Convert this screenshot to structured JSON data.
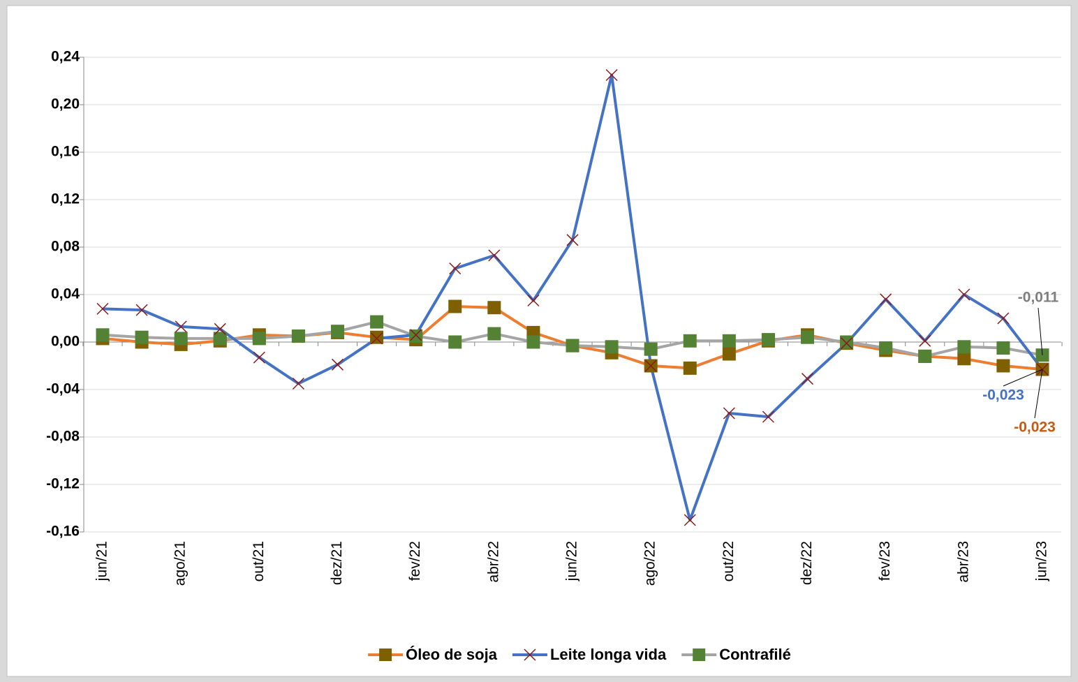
{
  "chart_data": {
    "type": "line",
    "categories": [
      "jun/21",
      null,
      "ago/21",
      null,
      "out/21",
      null,
      "dez/21",
      null,
      "fev/22",
      null,
      "abr/22",
      null,
      "jun/22",
      null,
      "ago/22",
      null,
      "out/22",
      null,
      "dez/22",
      null,
      "fev/23",
      null,
      "abr/23",
      null,
      "jun/23"
    ],
    "series": [
      {
        "name": "Óleo de soja",
        "color": "#ed7d31",
        "marker": "square",
        "marker_color": "#7f6000",
        "values": [
          0.003,
          0.0,
          -0.002,
          0.001,
          0.006,
          0.005,
          0.008,
          0.004,
          0.002,
          0.03,
          0.029,
          0.008,
          -0.003,
          -0.009,
          -0.02,
          -0.022,
          -0.01,
          0.001,
          0.006,
          -0.001,
          -0.007,
          -0.012,
          -0.014,
          -0.02,
          -0.023
        ],
        "value_labels": [
          null,
          null,
          null,
          null,
          null,
          null,
          null,
          null,
          null,
          null,
          null,
          null,
          null,
          null,
          null,
          null,
          null,
          null,
          null,
          null,
          null,
          null,
          null,
          null,
          "-0,023"
        ]
      },
      {
        "name": "Leite longa vida",
        "color": "#4472c4",
        "marker": "x",
        "marker_color": "#8b1a1a",
        "values": [
          0.028,
          0.027,
          0.013,
          0.011,
          -0.013,
          -0.035,
          -0.019,
          0.003,
          0.006,
          0.062,
          0.073,
          0.035,
          0.086,
          0.225,
          -0.02,
          -0.15,
          -0.06,
          -0.063,
          -0.031,
          -0.001,
          0.036,
          0.001,
          0.04,
          0.02,
          -0.023
        ],
        "value_labels": [
          null,
          null,
          null,
          null,
          null,
          null,
          null,
          null,
          null,
          null,
          null,
          null,
          null,
          null,
          null,
          null,
          null,
          null,
          null,
          null,
          null,
          null,
          null,
          null,
          "-0,023"
        ]
      },
      {
        "name": "Contrafilé",
        "color": "#a5a5a5",
        "marker": "square",
        "marker_color": "#548235",
        "values": [
          0.006,
          0.004,
          0.003,
          0.003,
          0.003,
          0.005,
          0.009,
          0.017,
          0.005,
          0.0,
          0.007,
          0.0,
          -0.003,
          -0.004,
          -0.006,
          0.001,
          0.001,
          0.002,
          0.004,
          0.0,
          -0.005,
          -0.012,
          -0.004,
          -0.005,
          -0.011
        ],
        "value_labels": [
          null,
          null,
          null,
          null,
          null,
          null,
          null,
          null,
          null,
          null,
          null,
          null,
          null,
          null,
          null,
          null,
          null,
          null,
          null,
          null,
          null,
          null,
          null,
          null,
          "-0,011"
        ]
      }
    ],
    "ylim": [
      -0.16,
      0.24
    ],
    "yticks": [
      {
        "value": -0.16,
        "label": "-0,16"
      },
      {
        "value": -0.12,
        "label": "-0,12"
      },
      {
        "value": -0.08,
        "label": "-0,08"
      },
      {
        "value": -0.04,
        "label": "-0,04"
      },
      {
        "value": 0,
        "label": "0,00"
      },
      {
        "value": 0.04,
        "label": "0,04"
      },
      {
        "value": 0.08,
        "label": "0,08"
      },
      {
        "value": 0.12,
        "label": "0,12"
      },
      {
        "value": 0.16,
        "label": "0,16"
      },
      {
        "value": 0.2,
        "label": "0,20"
      },
      {
        "value": 0.24,
        "label": "0,24"
      }
    ],
    "grid": true,
    "legend": "bottom"
  }
}
